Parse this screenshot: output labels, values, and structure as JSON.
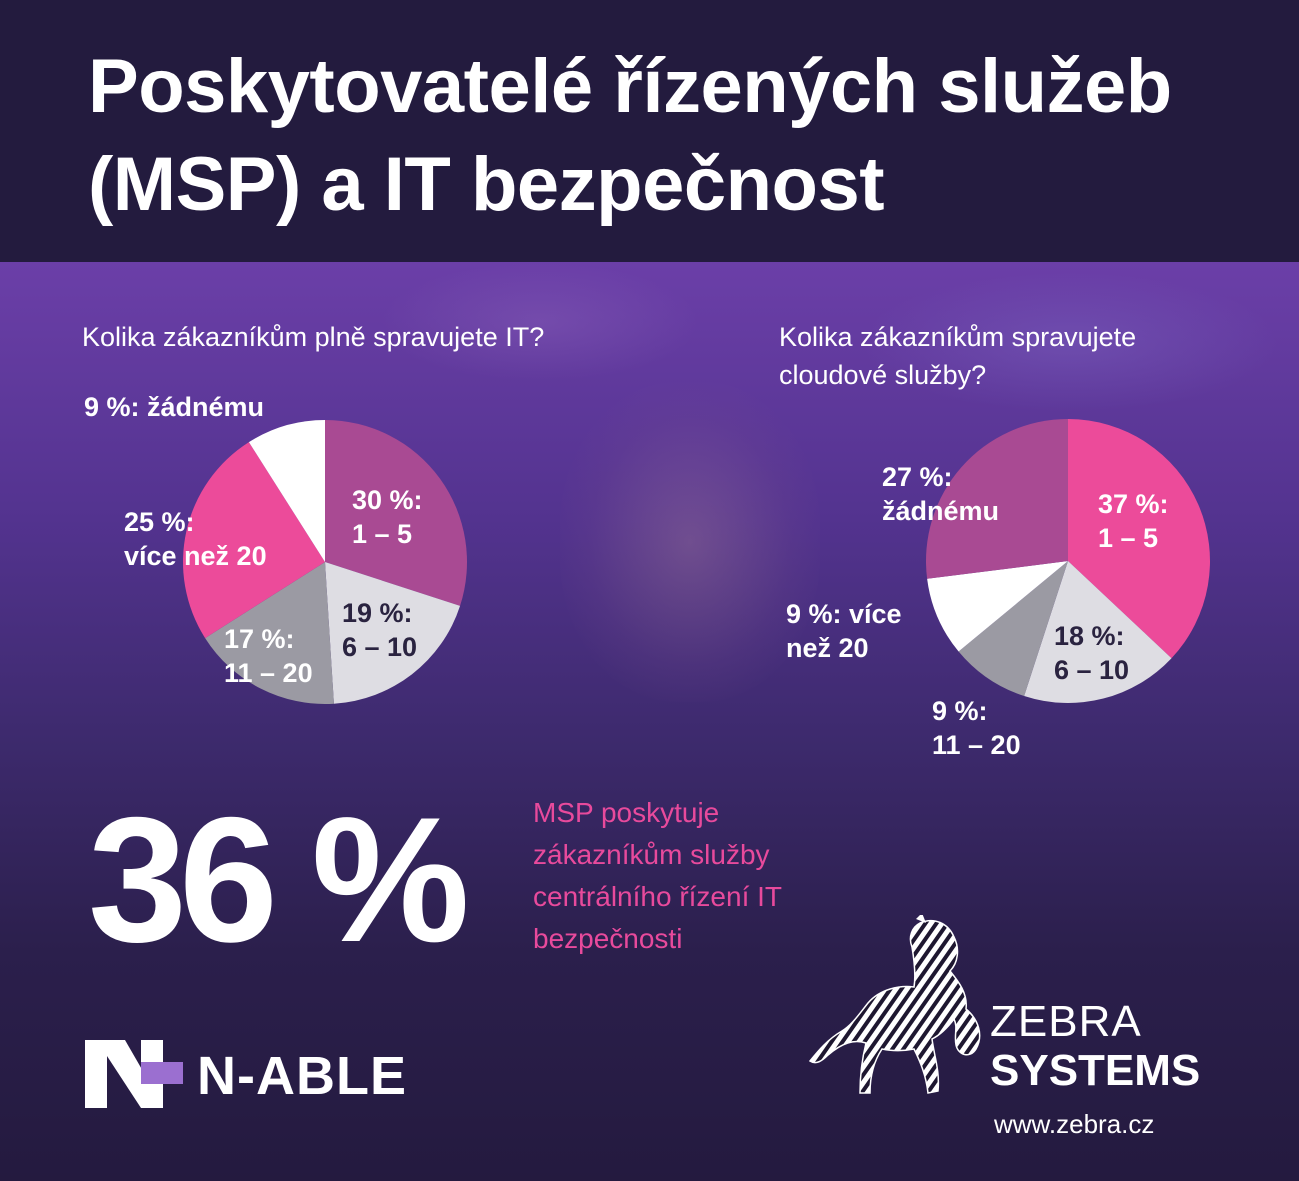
{
  "title": "Poskytovatelé řízených služeb (MSP) a IT bezpečnost",
  "colors": {
    "magenta": "#a94a93",
    "pink": "#ec4b9a",
    "light_gray": "#dedde3",
    "mid_gray": "#9b9aa3",
    "white": "#ffffff",
    "accent_text": "#e84a9c"
  },
  "chart_data": [
    {
      "type": "pie",
      "title": "Kolika zákazníkům plně spravujete IT?",
      "slices": [
        {
          "label": "30 %:\n1 – 5",
          "value": 30,
          "color": "#a94a93"
        },
        {
          "label": "19 %:\n6 – 10",
          "value": 19,
          "color": "#dedde3"
        },
        {
          "label": "17 %:\n11 – 20",
          "value": 17,
          "color": "#9b9aa3"
        },
        {
          "label": "25 %:\nvíce než 20",
          "value": 25,
          "color": "#ec4b9a"
        },
        {
          "label": "9 %: žádnému",
          "value": 9,
          "color": "#ffffff"
        }
      ]
    },
    {
      "type": "pie",
      "title": "Kolika zákazníkům spravujete cloudové služby?",
      "slices": [
        {
          "label": "37 %:\n1 – 5",
          "value": 37,
          "color": "#ec4b9a"
        },
        {
          "label": "18 %:\n6 – 10",
          "value": 18,
          "color": "#dedde3"
        },
        {
          "label": "9 %:\n11 – 20",
          "value": 9,
          "color": "#9b9aa3"
        },
        {
          "label": "9 %: více\nnež 20",
          "value": 9,
          "color": "#ffffff"
        },
        {
          "label": "27 %:\nžádnému",
          "value": 27,
          "color": "#a94a93"
        }
      ]
    }
  ],
  "stat": {
    "value": "36 %",
    "text": "MSP poskytuje zákazníkům služby centrálního řízení IT bezpečnosti"
  },
  "brand_nable": {
    "name": "N-ABLE"
  },
  "brand_zebra": {
    "line1": "ZEBRA",
    "line2": "SYSTEMS",
    "url": "www.zebra.cz"
  }
}
